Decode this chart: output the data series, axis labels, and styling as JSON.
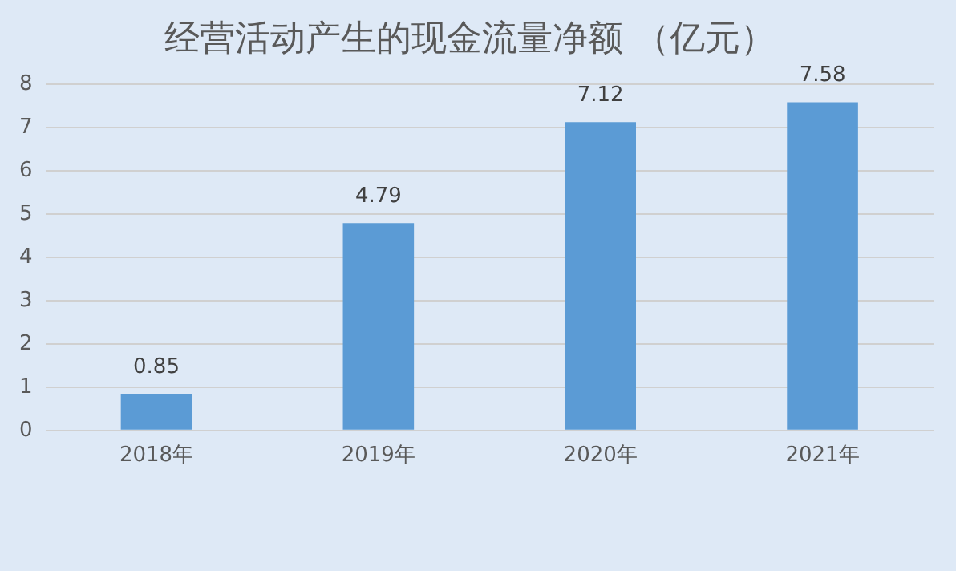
{
  "chart_data": {
    "type": "bar",
    "title": "经营活动产生的现金流量净额 （亿元）",
    "categories": [
      "2018年",
      "2019年",
      "2020年",
      "2021年"
    ],
    "values": [
      0.85,
      4.79,
      7.12,
      7.58
    ],
    "color": "#5b9bd5",
    "ylim": [
      0,
      8
    ],
    "yticks": [
      0,
      1,
      2,
      3,
      4,
      5,
      6,
      7,
      8
    ],
    "grid": "y",
    "data_labels": true,
    "legend": false
  }
}
